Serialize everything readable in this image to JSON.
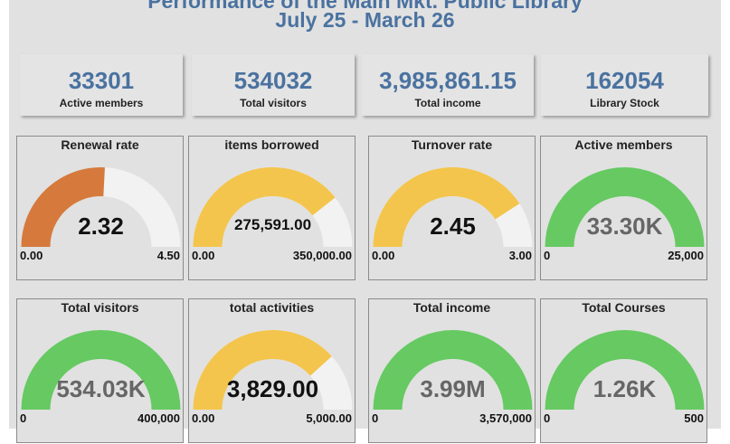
{
  "header": {
    "title": "Performance of the Main Mkt. Public Library",
    "subtitle": "July 25 - March 26"
  },
  "kpis": [
    {
      "value": "33301",
      "label": "Active members"
    },
    {
      "value": "534032",
      "label": "Total visitors"
    },
    {
      "value": "3,985,861.15",
      "label": "Total income"
    },
    {
      "value": "162054",
      "label": "Library Stock"
    }
  ],
  "gauges": [
    {
      "title": "Renewal rate",
      "value": "2.32",
      "min": "0.00",
      "max": "4.50",
      "fraction": 0.516,
      "color": "#d57a3c",
      "value_color": "#111"
    },
    {
      "title": "items borrowed",
      "value": "275,591.00",
      "min": "0.00",
      "max": "350,000.00",
      "fraction": 0.787,
      "color": "#f4c54c",
      "value_color": "#111",
      "small": true
    },
    {
      "title": "Turnover rate",
      "value": "2.45",
      "min": "0.00",
      "max": "3.00",
      "fraction": 0.817,
      "color": "#f4c54c",
      "value_color": "#111"
    },
    {
      "title": "Active members",
      "value": "33.30K",
      "min": "0",
      "max": "25,000",
      "fraction": 1,
      "color": "#66c962",
      "value_color": "#666"
    },
    {
      "title": "Total visitors",
      "value": "534.03K",
      "min": "0",
      "max": "400,000",
      "fraction": 1,
      "color": "#66c962",
      "value_color": "#666"
    },
    {
      "title": "total activities",
      "value": "3,829.00",
      "min": "0.00",
      "max": "5,000.00",
      "fraction": 0.766,
      "color": "#f4c54c",
      "value_color": "#111"
    },
    {
      "title": "Total income",
      "value": "3.99M",
      "min": "0",
      "max": "3,570,000",
      "fraction": 1,
      "color": "#66c962",
      "value_color": "#666"
    },
    {
      "title": "Total Courses",
      "value": "1.26K",
      "min": "0",
      "max": "500",
      "fraction": 1,
      "color": "#66c962",
      "value_color": "#666"
    }
  ]
}
